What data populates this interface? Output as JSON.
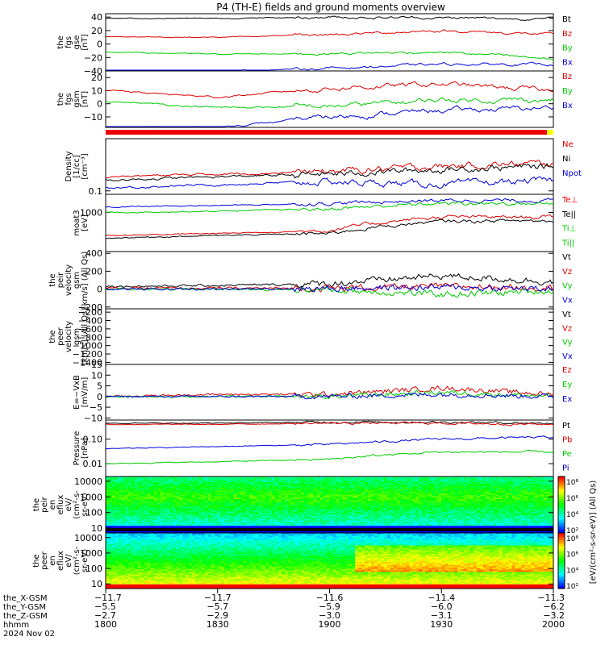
{
  "title": "P4 (TH-E) fields and ground moments overview",
  "colors": {
    "black": "#000000",
    "red": "#dd0000",
    "green": "#00cc00",
    "blue": "#0000dd",
    "bar": "#ee0000",
    "bar_end": "#ffff00"
  },
  "panels": [
    {
      "id": "fgs-gse",
      "ylabel_lines": [
        "the",
        "fgs",
        "gse",
        "[nT]"
      ],
      "ticks": [
        "40",
        "20",
        "0",
        "−20",
        "−40"
      ],
      "tick_values": [
        40,
        20,
        0,
        -20,
        -40
      ],
      "ylim": [
        -40,
        45
      ],
      "legend": [
        [
          "Bt",
          "black"
        ],
        [
          "Bz",
          "red"
        ],
        [
          "By",
          "green"
        ],
        [
          "Bx",
          "blue"
        ]
      ]
    },
    {
      "id": "fgs-gsm",
      "ylabel_lines": [
        "the",
        "fgs",
        "gsm",
        "[nT]"
      ],
      "ticks": [
        "20",
        "10",
        "0",
        "−10"
      ],
      "tick_values": [
        20,
        10,
        0,
        -10
      ],
      "ylim": [
        -18,
        25
      ],
      "legend": [
        [
          "Bz",
          "red"
        ],
        [
          "By",
          "green"
        ],
        [
          "Bx",
          "blue"
        ]
      ]
    },
    {
      "id": "density",
      "ylabel_lines": [
        "Density",
        "[1/cc]",
        "[cm⁻³]"
      ],
      "ticks": [
        "0.1"
      ],
      "tick_values": [
        0.1
      ],
      "ylim": [
        0.08,
        3
      ],
      "legend": [
        [
          "Ne",
          "red"
        ],
        [
          "Ni",
          "black"
        ],
        [
          "Npot",
          "blue"
        ]
      ]
    },
    {
      "id": "temp",
      "ylabel_lines": [
        "moat3",
        "[eV]"
      ],
      "ticks": [
        "1000"
      ],
      "tick_values": [
        1000
      ],
      "ylim": [
        50,
        4000
      ],
      "legend": [
        [
          "Te⊥",
          "red"
        ],
        [
          "Te||",
          "black"
        ],
        [
          "Ti⊥",
          "green"
        ],
        [
          "Ti||",
          "green"
        ]
      ]
    },
    {
      "id": "peir-vel",
      "ylabel_lines": [
        "the",
        "peir",
        "velocity",
        "gsm",
        "[km/s] (All Qs)"
      ],
      "ticks": [
        "400",
        "200",
        "0",
        "−200"
      ],
      "tick_values": [
        400,
        200,
        0,
        -200
      ],
      "ylim": [
        -220,
        420
      ],
      "legend": [
        [
          "Vt",
          "black"
        ],
        [
          "Vz",
          "red"
        ],
        [
          "Vy",
          "green"
        ],
        [
          "Vx",
          "blue"
        ]
      ]
    },
    {
      "id": "peer-vel",
      "ylabel_lines": [
        "the",
        "peer",
        "velocity",
        "gsm",
        "[km/s] (All Qs)"
      ],
      "ticks": [
        "−200",
        "−400",
        "−600",
        "−800",
        "−1000",
        "−1200",
        "−1400"
      ],
      "tick_values": [
        -200,
        -400,
        -600,
        -800,
        -1000,
        -1200,
        -1400
      ],
      "ylim": [
        -1450,
        -120
      ],
      "legend": [
        [
          "Vt",
          "black"
        ],
        [
          "Vz",
          "red"
        ],
        [
          "Vy",
          "green"
        ],
        [
          "Vx",
          "blue"
        ]
      ]
    },
    {
      "id": "efield",
      "ylabel_lines": [
        "E=−VxB",
        "[mV/m]"
      ],
      "ticks": [
        "15",
        "10",
        "5",
        "0",
        "−5",
        "−10"
      ],
      "tick_values": [
        15,
        10,
        5,
        0,
        -5,
        -10
      ],
      "ylim": [
        -11,
        15
      ],
      "legend": [
        [
          "Ez",
          "red"
        ],
        [
          "Ey",
          "green"
        ],
        [
          "Ex",
          "blue"
        ]
      ]
    },
    {
      "id": "pressure",
      "ylabel_lines": [
        "Pressure",
        "[nPa]"
      ],
      "ticks": [
        "0.10",
        "0.01"
      ],
      "tick_values": [
        0.1,
        0.01
      ],
      "ylim": [
        0.003,
        0.6
      ],
      "legend": [
        [
          "Pt",
          "black"
        ],
        [
          "Pb",
          "red"
        ],
        [
          "Pe",
          "green"
        ],
        [
          "Pi",
          "blue"
        ]
      ]
    },
    {
      "id": "peir-eflux",
      "ylabel_lines": [
        "the",
        "peir",
        "en",
        "eflux",
        "eV/",
        "(cm²-s-",
        "sr-eV)"
      ],
      "ticks": [
        "10000",
        "1000",
        "100",
        "10"
      ],
      "tick_values": [
        10000,
        1000,
        100,
        10
      ],
      "ylim": [
        5,
        20000
      ],
      "legend": []
    },
    {
      "id": "peer-eflux",
      "ylabel_lines": [
        "the",
        "peer",
        "en",
        "eflux",
        "eV/",
        "(cm²-s-",
        "sr-eV)"
      ],
      "ticks": [
        "10000",
        "1000",
        "100",
        "10"
      ],
      "tick_values": [
        10000,
        1000,
        100,
        10
      ],
      "ylim": [
        5,
        20000
      ],
      "legend": []
    }
  ],
  "colorbar": {
    "upper_ticks": [
      "10⁸",
      "10⁶",
      "10⁴",
      "10²"
    ],
    "lower_ticks": [
      "10⁸",
      "10⁶",
      "10⁴",
      "10²"
    ],
    "label": "[eV/(cm²-s-sr-eV)] (All Qs)"
  },
  "xaxis": {
    "row_labels": [
      "the_X-GSM",
      "the_Y-GSM",
      "the_Z-GSM",
      "hhmm",
      "2024 Nov 02"
    ],
    "ticks": [
      [
        "−11.7",
        "−5.5",
        "−2.7",
        "1800"
      ],
      [
        "−11.7",
        "−5.7",
        "−2.9",
        "1830"
      ],
      [
        "−11.6",
        "−5.9",
        "−3.0",
        "1900"
      ],
      [
        "−11.4",
        "−6.0",
        "−3.1",
        "1930"
      ],
      [
        "−11.3",
        "−6.2",
        "−3.2",
        "2000"
      ]
    ]
  },
  "chart_data": {
    "type": "line",
    "title": "P4 (TH-E) fields and ground moments overview",
    "time_range": [
      "1800",
      "2000"
    ],
    "date": "2024 Nov 02",
    "x_ticks": [
      "1800",
      "1830",
      "1900",
      "1930",
      "2000"
    ],
    "series": [
      {
        "panel": "fgs-gse",
        "name": "Bt",
        "x": [
          "1800",
          "1830",
          "1900",
          "1930",
          "2000"
        ],
        "values": [
          38,
          38,
          40,
          39,
          37
        ]
      },
      {
        "panel": "fgs-gse",
        "name": "Bz",
        "x": [
          "1800",
          "1830",
          "1900",
          "1930",
          "2000"
        ],
        "values": [
          11,
          10,
          14,
          20,
          14
        ]
      },
      {
        "panel": "fgs-gse",
        "name": "By",
        "x": [
          "1800",
          "1830",
          "1900",
          "1930",
          "2000"
        ],
        "values": [
          -12,
          -15,
          -14,
          -12,
          -22
        ]
      },
      {
        "panel": "fgs-gse",
        "name": "Bx",
        "x": [
          "1800",
          "1830",
          "1900",
          "1930",
          "2000"
        ],
        "values": [
          -40,
          -40,
          -36,
          -30,
          -30
        ]
      },
      {
        "panel": "fgs-gsm",
        "name": "Bz",
        "x": [
          "1800",
          "1830",
          "1900",
          "1930",
          "2000"
        ],
        "values": [
          10,
          5,
          12,
          15,
          10
        ]
      },
      {
        "panel": "fgs-gsm",
        "name": "By",
        "x": [
          "1800",
          "1830",
          "1900",
          "1930",
          "2000"
        ],
        "values": [
          2,
          -3,
          -2,
          3,
          3
        ]
      },
      {
        "panel": "fgs-gsm",
        "name": "Bx",
        "x": [
          "1800",
          "1830",
          "1900",
          "1930",
          "2000"
        ],
        "values": [
          -18,
          -18,
          -10,
          -5,
          -3
        ]
      },
      {
        "panel": "efield",
        "name": "Ez",
        "x": [
          "1800",
          "1830",
          "1900",
          "1930",
          "2000"
        ],
        "values": [
          0,
          1,
          1,
          4,
          1
        ]
      },
      {
        "panel": "efield",
        "name": "Ey",
        "x": [
          "1800",
          "1830",
          "1900",
          "1930",
          "2000"
        ],
        "values": [
          0,
          0,
          0,
          2,
          0
        ]
      },
      {
        "panel": "efield",
        "name": "Ex",
        "x": [
          "1800",
          "1830",
          "1900",
          "1930",
          "2000"
        ],
        "values": [
          0,
          0,
          0,
          1,
          0
        ]
      }
    ]
  }
}
